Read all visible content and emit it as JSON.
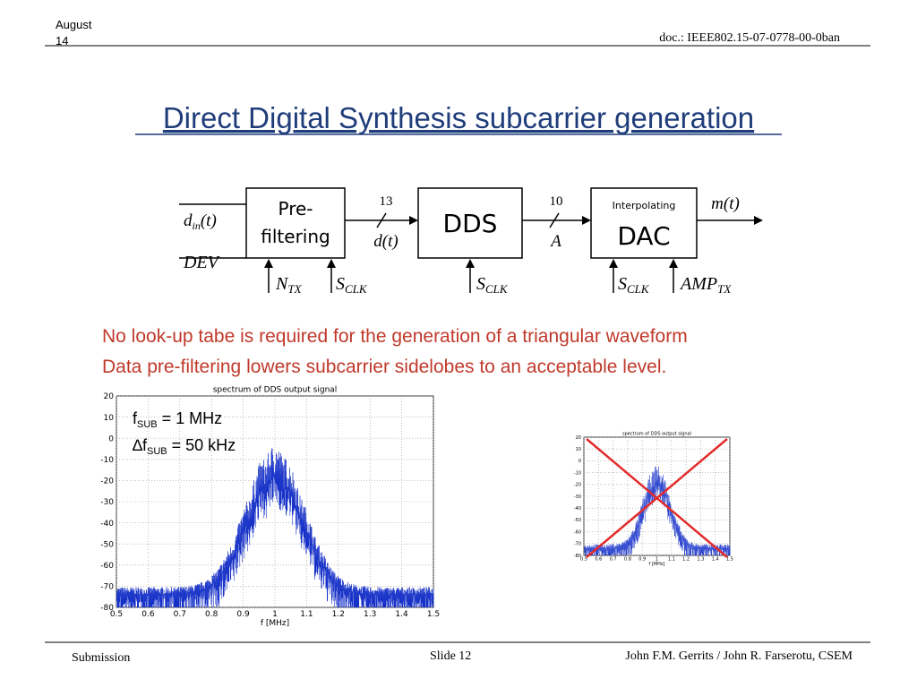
{
  "header": {
    "date_lines": [
      "August",
      "14"
    ],
    "doc": "doc.: IEEE802.15-07-0778-00-0ban"
  },
  "title": "Direct Digital Synthesis subcarrier generation",
  "diagram": {
    "blocks": {
      "prefilter": [
        "Pre-",
        "filtering"
      ],
      "dds": "DDS",
      "dac_small": "Interpolating",
      "dac": "DAC"
    },
    "input1": {
      "base": "d",
      "sub": "in",
      "suffix": "(t)"
    },
    "input2": "DEV",
    "bus1": {
      "width": "13",
      "label": "d(t)"
    },
    "bus2": {
      "width": "10",
      "label": "A"
    },
    "output": "m(t)",
    "controls": [
      {
        "base": "N",
        "sub": "TX"
      },
      {
        "base": "S",
        "sub": "CLK"
      },
      {
        "base": "S",
        "sub": "CLK"
      },
      {
        "base": "S",
        "sub": "CLK"
      },
      {
        "base": "AMP",
        "sub": "TX"
      }
    ]
  },
  "bullets": [
    "No look-up tabe is required for the generation of a triangular waveform",
    "Data pre-filtering lowers subcarrier sidelobes to an acceptable level."
  ],
  "plot_main": {
    "title": "spectrum of DDS output signal",
    "xlabel": "f [MHz]",
    "xticks": [
      "0.5",
      "0.6",
      "0.7",
      "0.8",
      "0.9",
      "1",
      "1.1",
      "1.2",
      "1.3",
      "1.4",
      "1.5"
    ],
    "yticks": [
      "20",
      "10",
      "0",
      "-10",
      "-20",
      "-30",
      "-40",
      "-50",
      "-60",
      "-70",
      "-80"
    ]
  },
  "annotations": [
    {
      "base": "f",
      "sub": "SUB",
      "suffix": " = 1 MHz"
    },
    {
      "base": "∆f",
      "sub": "SUB",
      "suffix": " = 50 kHz"
    }
  ],
  "plot_small": {
    "title": "spectrum of DDS output signal",
    "xlabel": "f [MHz]",
    "xticks": [
      "0.5",
      "0.6",
      "0.7",
      "0.8",
      "0.9",
      "1",
      "1.1",
      "1.2",
      "1.3",
      "1.4",
      "1.5"
    ],
    "yticks": [
      "20",
      "10",
      "0",
      "-10",
      "-20",
      "-30",
      "-40",
      "-50",
      "-60",
      "-70",
      "-80"
    ]
  },
  "footer": {
    "left": "Submission",
    "center": "Slide 12",
    "right": "John F.M. Gerrits / John R. Farserotu, CSEM"
  }
}
